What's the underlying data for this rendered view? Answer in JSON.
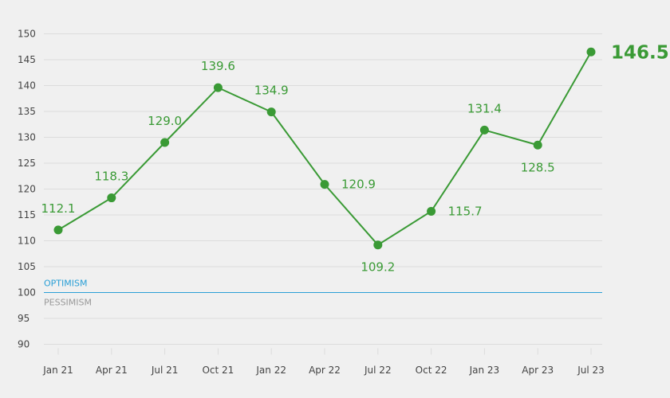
{
  "colors": {
    "background": "#f0f0f0",
    "line": "#3a9a35",
    "grid": "#dcdcdc",
    "reference_line": "#2a9fd6",
    "optimism_text": "#2a9fd6",
    "pessimism_text": "#9a9a9a",
    "tick_text": "#444444"
  },
  "chart_data": {
    "type": "line",
    "title": "",
    "xlabel": "",
    "ylabel": "",
    "categories": [
      "Jan 21",
      "Apr 21",
      "Jul 21",
      "Oct 21",
      "Jan 22",
      "Apr 22",
      "Jul 22",
      "Oct 22",
      "Jan 23",
      "Apr 23",
      "Jul 23"
    ],
    "series": [
      {
        "values": [
          112.1,
          118.3,
          129.0,
          139.6,
          134.9,
          120.9,
          109.2,
          115.7,
          131.4,
          128.5,
          146.5
        ],
        "labels": [
          "112.1",
          "118.3",
          "129.0",
          "139.6",
          "134.9",
          "120.9",
          "109.2",
          "115.7",
          "131.4",
          "128.5",
          "146.5"
        ]
      }
    ],
    "ylim": [
      90,
      150
    ],
    "yticks": [
      90,
      95,
      100,
      105,
      110,
      115,
      120,
      125,
      130,
      135,
      140,
      145,
      150
    ],
    "grid": true,
    "reference_line": {
      "value": 100,
      "label_above": "OPTIMISM",
      "label_below": "PESSIMISM"
    }
  }
}
